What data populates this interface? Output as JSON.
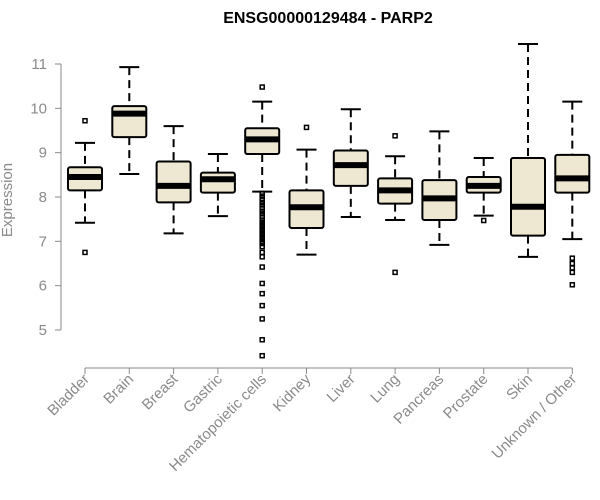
{
  "chart_data": {
    "type": "boxplot",
    "title": "ENSG00000129484 - PARP2",
    "ylabel": "Expression",
    "xlabel": "",
    "ylim": [
      4.2,
      11.6
    ],
    "yticks": [
      5,
      6,
      7,
      8,
      9,
      10,
      11
    ],
    "box_color": "#EEE8D2",
    "grid": false,
    "categories": [
      "Bladder",
      "Brain",
      "Breast",
      "Gastric",
      "Hematopoietic cells",
      "Kidney",
      "Liver",
      "Lung",
      "Pancreas",
      "Prostate",
      "Skin",
      "Unknown / Other"
    ],
    "boxes": [
      {
        "lower_whisker": 7.42,
        "q1": 8.15,
        "median": 8.45,
        "q3": 8.67,
        "upper_whisker": 9.22,
        "outliers": [
          9.72,
          6.75
        ]
      },
      {
        "lower_whisker": 8.52,
        "q1": 9.35,
        "median": 9.88,
        "q3": 10.05,
        "upper_whisker": 10.93,
        "outliers": []
      },
      {
        "lower_whisker": 7.18,
        "q1": 7.88,
        "median": 8.25,
        "q3": 8.8,
        "upper_whisker": 9.6,
        "outliers": []
      },
      {
        "lower_whisker": 7.57,
        "q1": 8.1,
        "median": 8.4,
        "q3": 8.55,
        "upper_whisker": 8.97,
        "outliers": []
      },
      {
        "lower_whisker": 8.12,
        "q1": 8.97,
        "median": 9.3,
        "q3": 9.55,
        "upper_whisker": 10.15,
        "outliers": [
          10.48,
          8.08,
          8.02,
          7.95,
          7.88,
          7.82,
          7.75,
          7.68,
          7.62,
          7.55,
          7.48,
          7.42,
          7.36,
          7.3,
          7.24,
          7.18,
          7.12,
          7.06,
          7.0,
          6.95,
          6.88,
          6.75,
          6.65,
          6.42,
          6.05,
          5.82,
          5.55,
          5.25,
          4.78,
          4.42
        ]
      },
      {
        "lower_whisker": 6.7,
        "q1": 7.3,
        "median": 7.77,
        "q3": 8.15,
        "upper_whisker": 9.07,
        "outliers": [
          9.57
        ]
      },
      {
        "lower_whisker": 7.55,
        "q1": 8.25,
        "median": 8.72,
        "q3": 9.05,
        "upper_whisker": 9.98,
        "outliers": []
      },
      {
        "lower_whisker": 7.48,
        "q1": 7.85,
        "median": 8.15,
        "q3": 8.42,
        "upper_whisker": 8.92,
        "outliers": [
          9.38,
          6.3
        ]
      },
      {
        "lower_whisker": 6.92,
        "q1": 7.48,
        "median": 7.97,
        "q3": 8.38,
        "upper_whisker": 9.48,
        "outliers": []
      },
      {
        "lower_whisker": 7.58,
        "q1": 8.1,
        "median": 8.25,
        "q3": 8.45,
        "upper_whisker": 8.88,
        "outliers": [
          7.47
        ]
      },
      {
        "lower_whisker": 6.65,
        "q1": 7.13,
        "median": 7.78,
        "q3": 8.88,
        "upper_whisker": 11.45,
        "outliers": []
      },
      {
        "lower_whisker": 7.05,
        "q1": 8.1,
        "median": 8.42,
        "q3": 8.95,
        "upper_whisker": 10.15,
        "outliers": [
          6.62,
          6.5,
          6.4,
          6.3,
          6.02
        ]
      }
    ]
  }
}
